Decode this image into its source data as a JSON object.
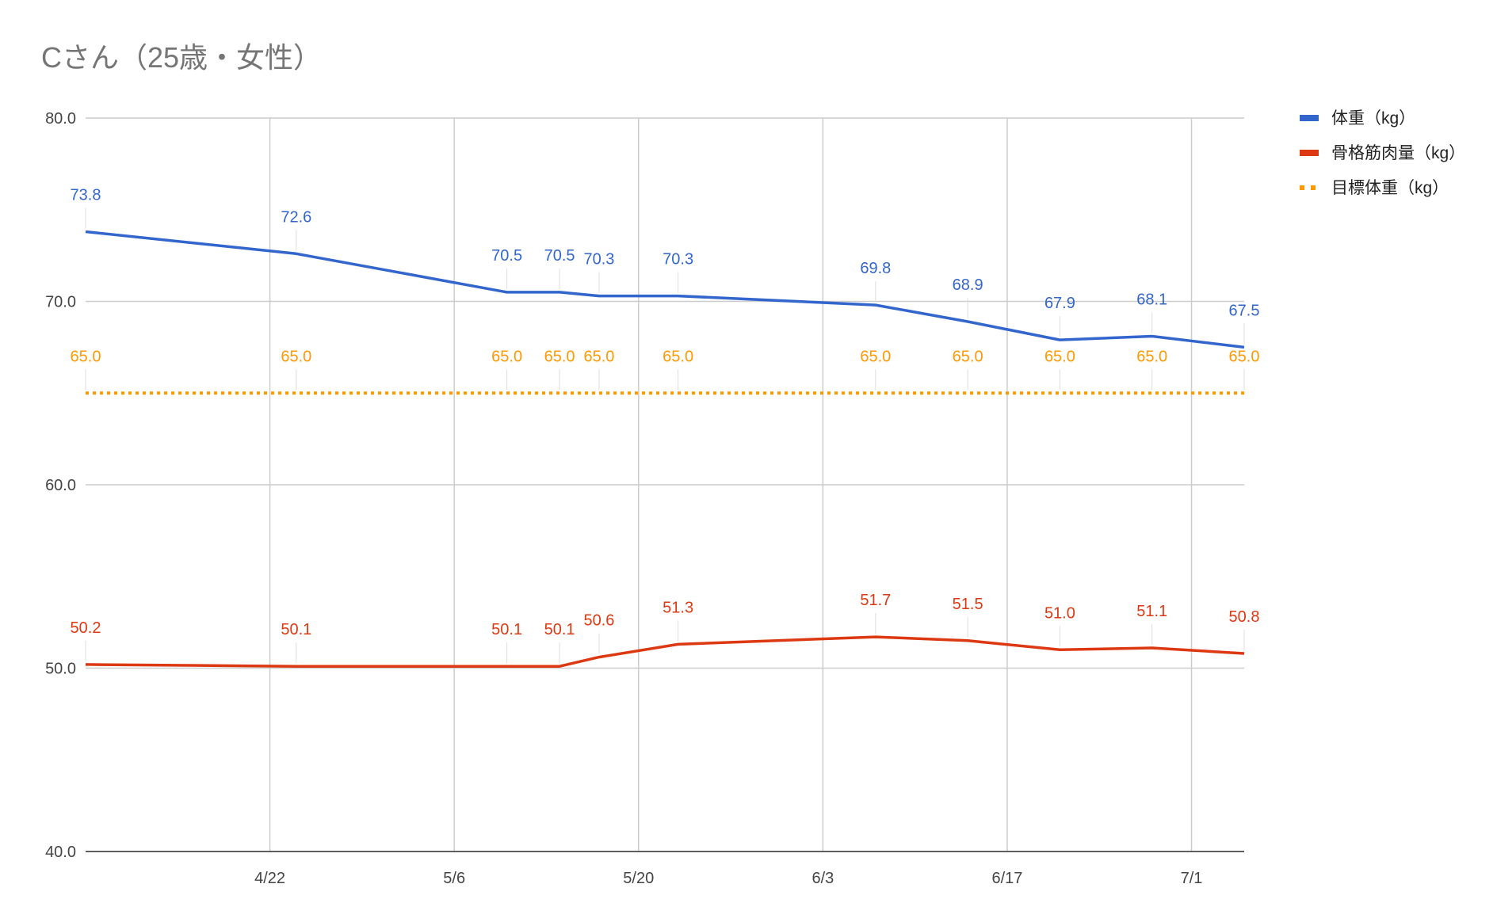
{
  "chart_data": {
    "type": "line",
    "title": "Cさん（25歳・女性）",
    "xlabel": "",
    "ylabel": "",
    "x_axis": {
      "type": "date",
      "range": [
        "2022-04-08",
        "2022-07-05"
      ],
      "ticks": [
        "2022-04-22",
        "2022-05-06",
        "2022-05-20",
        "2022-06-03",
        "2022-06-17",
        "2022-07-01"
      ],
      "tick_labels": [
        "4/22",
        "5/6",
        "5/20",
        "6/3",
        "6/17",
        "7/1"
      ]
    },
    "ylim": [
      40,
      80
    ],
    "y_ticks": [
      40,
      50,
      60,
      70,
      80
    ],
    "y_tick_labels": [
      "40.0",
      "50.0",
      "60.0",
      "70.0",
      "80.0"
    ],
    "grid": true,
    "legend_position": "right",
    "x": [
      "2022-04-08",
      "2022-04-24",
      "2022-05-10",
      "2022-05-14",
      "2022-05-17",
      "2022-05-23",
      "2022-06-07",
      "2022-06-14",
      "2022-06-21",
      "2022-06-28",
      "2022-07-05"
    ],
    "series": [
      {
        "name": "体重（kg）",
        "color": "#3366cc",
        "style": "solid",
        "values": [
          73.8,
          72.6,
          70.5,
          70.5,
          70.3,
          70.3,
          69.8,
          68.9,
          67.9,
          68.1,
          67.5
        ],
        "labels": [
          "73.8",
          "72.6",
          "70.5",
          "70.5",
          "70.3",
          "70.3",
          "69.8",
          "68.9",
          "67.9",
          "68.1",
          "67.5"
        ]
      },
      {
        "name": "骨格筋肉量（kg）",
        "color": "#dc3912",
        "style": "solid",
        "values": [
          50.2,
          50.1,
          50.1,
          50.1,
          50.6,
          51.3,
          51.7,
          51.5,
          51.0,
          51.1,
          50.8
        ],
        "labels": [
          "50.2",
          "50.1",
          "50.1",
          "50.1",
          "50.6",
          "51.3",
          "51.7",
          "51.5",
          "51.0",
          "51.1",
          "50.8"
        ]
      },
      {
        "name": "目標体重（kg）",
        "color": "#ff9900",
        "style": "dotted",
        "values": [
          65.0,
          65.0,
          65.0,
          65.0,
          65.0,
          65.0,
          65.0,
          65.0,
          65.0,
          65.0,
          65.0
        ],
        "labels": [
          "65.0",
          "65.0",
          "65.0",
          "65.0",
          "65.0",
          "65.0",
          "65.0",
          "65.0",
          "65.0",
          "65.0",
          "65.0"
        ]
      }
    ]
  }
}
